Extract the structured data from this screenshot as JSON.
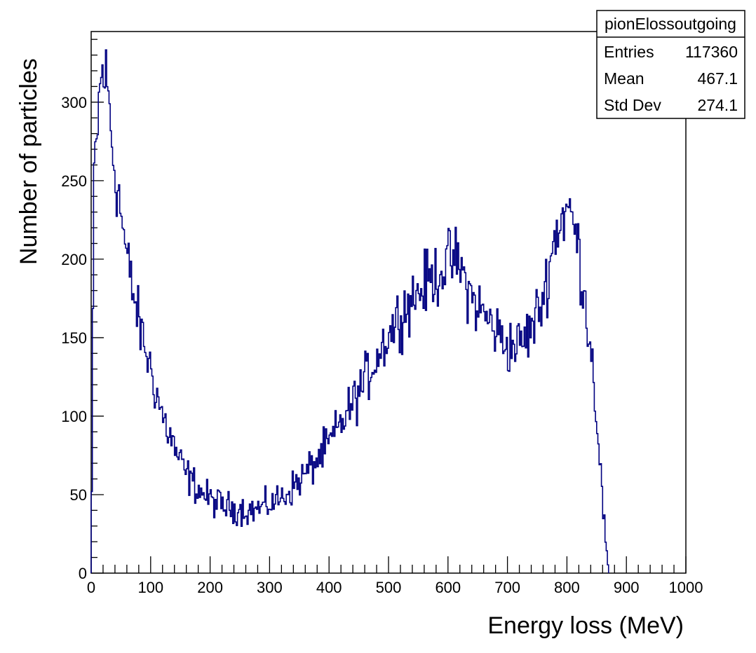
{
  "chart_data": {
    "type": "histogram",
    "title": "",
    "xlabel": "Energy loss (MeV)",
    "ylabel": "Number of particles",
    "xlim": [
      0,
      1000
    ],
    "ylim": [
      0,
      345
    ],
    "x_ticks": [
      "0",
      "100",
      "200",
      "300",
      "400",
      "500",
      "600",
      "700",
      "800",
      "900",
      "1000"
    ],
    "y_ticks": [
      "0",
      "50",
      "100",
      "150",
      "200",
      "250",
      "300"
    ],
    "grid": false,
    "line_color": "#000080",
    "series": [
      {
        "x": [
          0,
          5,
          10,
          15,
          20,
          25,
          30,
          35,
          40,
          45,
          50,
          60,
          70,
          80,
          90,
          100,
          110,
          120,
          130,
          140,
          150,
          160,
          170,
          180,
          190,
          200,
          210,
          220,
          230,
          240,
          250,
          260,
          270,
          280,
          290,
          300,
          320,
          340,
          360,
          380,
          400,
          420,
          440,
          460,
          480,
          500,
          520,
          540,
          560,
          580,
          600,
          610,
          620,
          630,
          640,
          660,
          680,
          700,
          720,
          740,
          760,
          780,
          790,
          800,
          810,
          820,
          830,
          840,
          845,
          850,
          855,
          860,
          865,
          870
        ],
        "values": [
          0,
          255,
          280,
          310,
          320,
          315,
          300,
          275,
          255,
          245,
          230,
          200,
          180,
          160,
          145,
          130,
          115,
          100,
          90,
          80,
          70,
          63,
          58,
          54,
          50,
          47,
          45,
          43,
          42,
          41,
          41,
          40,
          40,
          41,
          42,
          44,
          48,
          55,
          63,
          72,
          82,
          95,
          108,
          122,
          138,
          152,
          165,
          175,
          183,
          190,
          198,
          200,
          195,
          185,
          175,
          165,
          155,
          145,
          145,
          155,
          175,
          215,
          225,
          232,
          225,
          205,
          175,
          145,
          125,
          100,
          75,
          45,
          20,
          0
        ]
      }
    ]
  },
  "stats_box": {
    "name": "pionElossoutgoing",
    "rows": [
      {
        "label": "Entries",
        "value": "117360"
      },
      {
        "label": "Mean",
        "value": "467.1"
      },
      {
        "label": "Std Dev",
        "value": "274.1"
      }
    ]
  }
}
